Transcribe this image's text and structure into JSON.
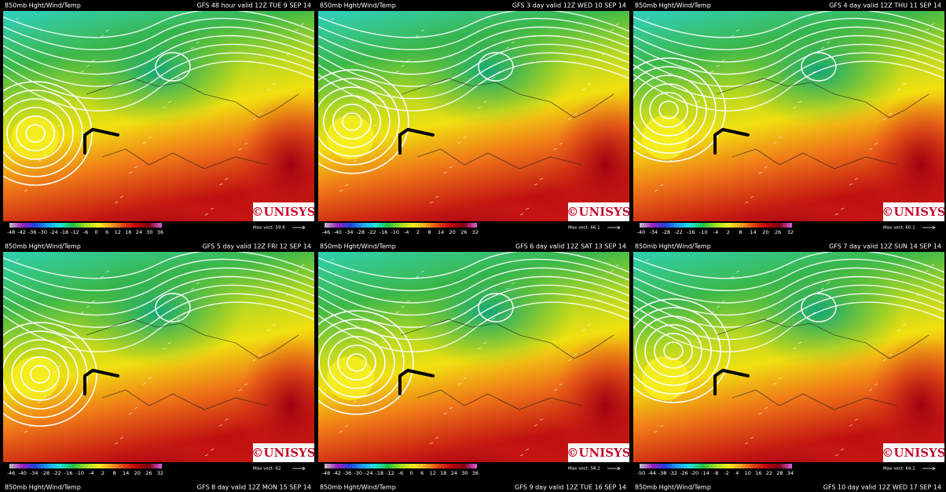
{
  "panels": [
    {
      "product": "850mb Hght/Wind/Temp",
      "valid": "GFS 48 hour valid 12Z TUE  9 SEP 14",
      "logo": "©UNISYS",
      "max_vect": "Max vect: 59.8",
      "scale": [
        -48,
        -42,
        -36,
        -30,
        -24,
        -18,
        -12,
        -6,
        0,
        6,
        12,
        18,
        24,
        30,
        36
      ]
    },
    {
      "product": "850mb Hght/Wind/Temp",
      "valid": "GFS 3 day valid 12Z WED 10 SEP 14",
      "logo": "©UNISYS",
      "max_vect": "Max vect: 66.1",
      "scale": [
        -46,
        -40,
        -34,
        -28,
        -22,
        -16,
        -10,
        -4,
        2,
        8,
        14,
        20,
        26,
        32
      ]
    },
    {
      "product": "850mb Hght/Wind/Temp",
      "valid": "GFS 4 day valid 12Z THU 11 SEP 14",
      "logo": "©UNISYS",
      "max_vect": "Max vect: 60.1",
      "scale": [
        -40,
        -34,
        -28,
        -22,
        -16,
        -10,
        -4,
        2,
        8,
        14,
        20,
        26,
        32
      ]
    },
    {
      "product": "850mb Hght/Wind/Temp",
      "valid": "GFS 5 day valid 12Z FRI 12 SEP 14",
      "logo": "©UNISYS",
      "max_vect": "Max vect: 62",
      "scale": [
        -46,
        -40,
        -34,
        -28,
        -22,
        -16,
        -10,
        -4,
        2,
        8,
        14,
        20,
        26,
        32
      ]
    },
    {
      "product": "850mb Hght/Wind/Temp",
      "valid": "GFS 6 day valid 12Z SAT 13 SEP 14",
      "logo": "©UNISYS",
      "max_vect": "Max vect: 58.2",
      "scale": [
        -48,
        -42,
        -36,
        -30,
        -24,
        -18,
        -12,
        -6,
        0,
        6,
        12,
        18,
        24,
        30,
        36
      ]
    },
    {
      "product": "850mb Hght/Wind/Temp",
      "valid": "GFS 7 day valid 12Z SUN 14 SEP 14",
      "logo": "©UNISYS",
      "max_vect": "Max vect: 64.2",
      "scale": [
        -50,
        -44,
        -38,
        -32,
        -26,
        -20,
        -14,
        -8,
        -2,
        4,
        10,
        16,
        22,
        28,
        34
      ]
    }
  ],
  "next_row": [
    {
      "product": "850mb Hght/Wind/Temp",
      "valid": "GFS 8 day valid 12Z MON 15 SEP 14"
    },
    {
      "product": "850mb Hght/Wind/Temp",
      "valid": "GFS 9 day valid 12Z TUE 16 SEP 14"
    },
    {
      "product": "850mb Hght/Wind/Temp",
      "valid": "GFS 10 day valid 12Z WED 17 SEP 14"
    }
  ]
}
